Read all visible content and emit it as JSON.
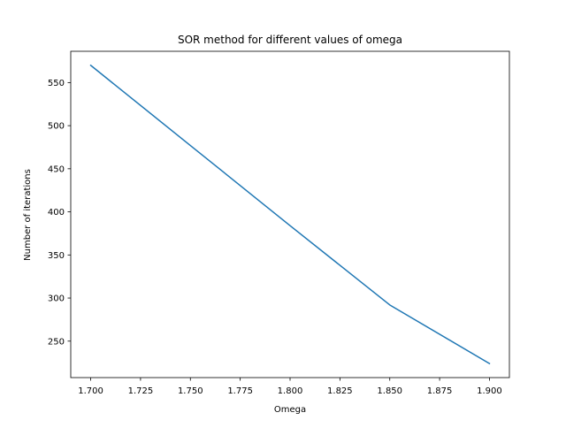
{
  "chart_data": {
    "type": "line",
    "title": "SOR method for different values of omega",
    "xlabel": "Omega",
    "ylabel": "Number of iterations",
    "x": [
      1.7,
      1.75,
      1.8,
      1.85,
      1.9
    ],
    "series": [
      {
        "values": [
          570,
          477,
          384,
          292,
          224
        ],
        "color": "#1f77b4"
      }
    ],
    "xlim": [
      1.69,
      1.91
    ],
    "ylim": [
      207.7,
      586.3
    ],
    "xticks": [
      "1.700",
      "1.725",
      "1.750",
      "1.775",
      "1.800",
      "1.825",
      "1.850",
      "1.875",
      "1.900"
    ],
    "yticks": [
      "250",
      "300",
      "350",
      "400",
      "450",
      "500",
      "550"
    ],
    "grid": false,
    "legend": "none"
  }
}
